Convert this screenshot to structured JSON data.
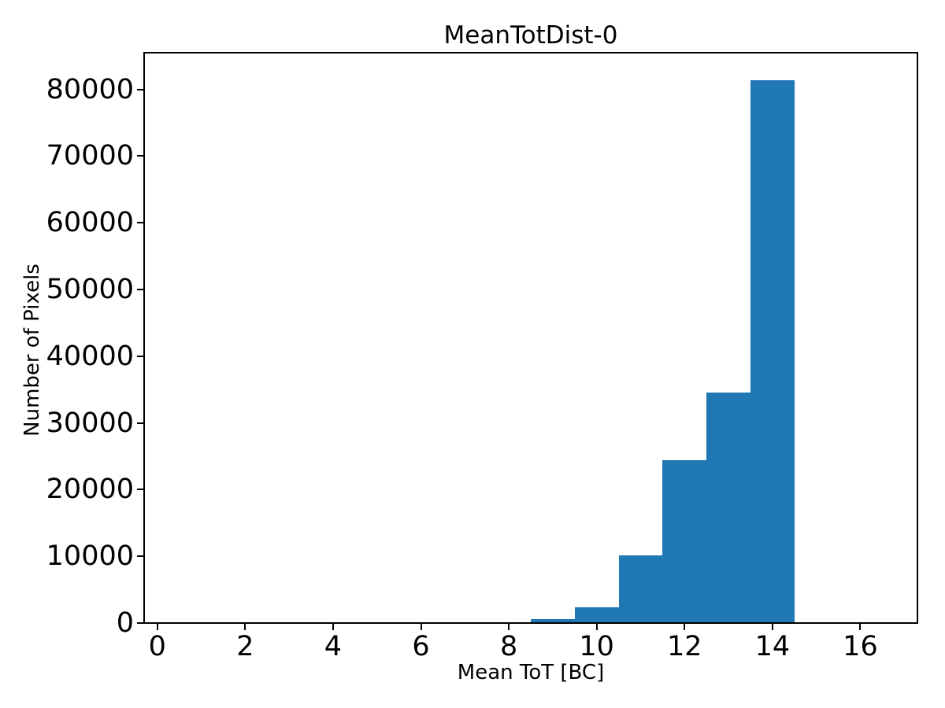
{
  "figure": {
    "background_color": "#ffffff",
    "axes_color": "#000000"
  },
  "chart_data": {
    "type": "bar",
    "title": "MeanTotDist-0",
    "xlabel": "Mean ToT [BC]",
    "ylabel": "Number of Pixels",
    "bar_color": "#1f77b4",
    "bin_edges": [
      8.5,
      9.5,
      10.5,
      11.5,
      12.5,
      13.5,
      14.5
    ],
    "counts": [
      550,
      2400,
      10150,
      24400,
      34600,
      81400
    ],
    "x_ticks": [
      0,
      2,
      4,
      6,
      8,
      10,
      12,
      14,
      16
    ],
    "y_ticks": [
      0,
      10000,
      20000,
      30000,
      40000,
      50000,
      60000,
      70000,
      80000
    ],
    "xlim": [
      -0.3,
      17.3
    ],
    "ylim": [
      0,
      85500
    ],
    "grid": false,
    "legend_position": "none"
  }
}
